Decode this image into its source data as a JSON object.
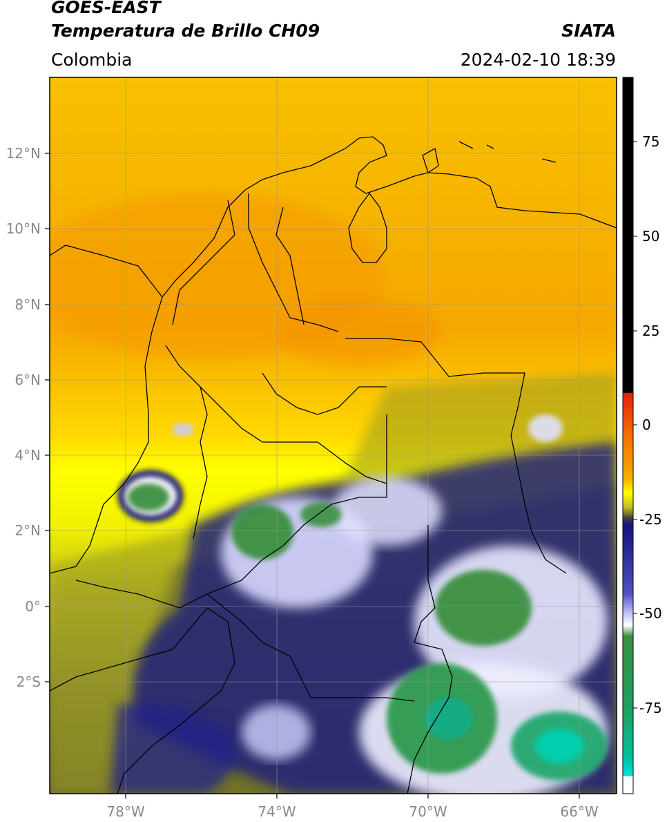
{
  "header": {
    "satellite": "GOES-EAST",
    "product": "Temperatura de Brillo CH09",
    "region": "Colombia",
    "agency": "SIATA",
    "datetime": "2024-02-10 18:39"
  },
  "map": {
    "lon_ticks": [
      "78°W",
      "74°W",
      "70°W",
      "66°W"
    ],
    "lat_ticks": [
      "12°N",
      "10°N",
      "8°N",
      "6°N",
      "4°N",
      "2°N",
      "0°",
      "2°S"
    ]
  },
  "colorbar": {
    "labels": [
      "75",
      "50",
      "25",
      "0",
      "-25",
      "-50",
      "-75"
    ],
    "colors": {
      "black": "#000000",
      "red": "#e8200c",
      "orange": "#f5a000",
      "yellow": "#ffff00",
      "olive": "#8a8a2a",
      "dark_gray": "#404040",
      "navy": "#14147a",
      "blue_white": "#c8c8ff",
      "white": "#ffffff",
      "green": "#3a9040",
      "teal": "#00c0a0",
      "cyan": "#00e0e0"
    }
  }
}
